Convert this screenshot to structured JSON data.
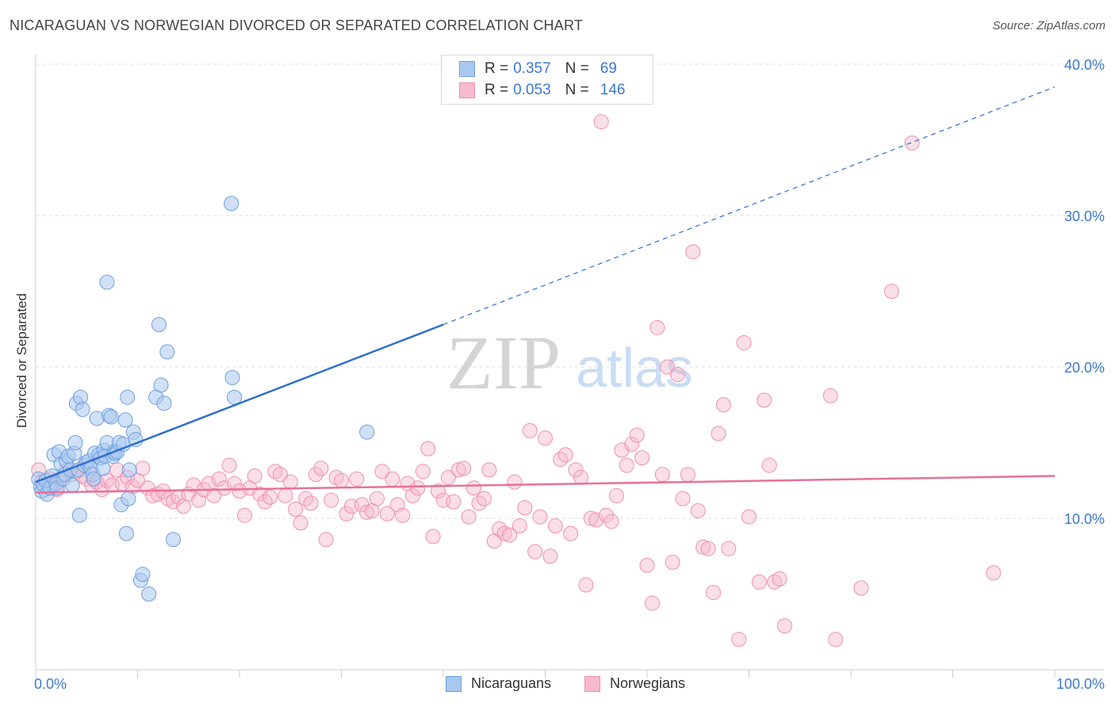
{
  "header": {
    "title": "NICARAGUAN VS NORWEGIAN DIVORCED OR SEPARATED CORRELATION CHART",
    "source": "Source: ZipAtlas.com"
  },
  "watermark": {
    "zip": "ZIP",
    "atlas": "atlas"
  },
  "legend_top": {
    "rows": [
      {
        "r_label": "R =",
        "r_value": "0.357",
        "n_label": "N =",
        "n_value": "69"
      },
      {
        "r_label": "R =",
        "r_value": "0.053",
        "n_label": "N =",
        "n_value": "146"
      }
    ]
  },
  "legend_bottom": {
    "items": [
      "Nicaraguans",
      "Norwegians"
    ]
  },
  "colors": {
    "blue_fill": "#a9c8f0",
    "blue_stroke": "#6f9fdc",
    "blue_line": "#2f6fcf",
    "pink_fill": "#f7b9cc",
    "pink_stroke": "#ee8faf",
    "pink_line": "#e8709a",
    "tick_label": "#3b78d0",
    "grid": "#dddddd"
  },
  "chart_data": {
    "type": "scatter",
    "title": "NICARAGUAN VS NORWEGIAN DIVORCED OR SEPARATED CORRELATION CHART",
    "xlabel": "",
    "ylabel": "Divorced or Separated",
    "xlim": [
      0,
      100
    ],
    "ylim": [
      0,
      40
    ],
    "x_tick_labels": [
      "0.0%",
      "100.0%"
    ],
    "y_ticks": [
      10,
      20,
      30,
      40
    ],
    "y_tick_labels": [
      "10.0%",
      "20.0%",
      "30.0%",
      "40.0%"
    ],
    "grid": true,
    "legend": "top-center",
    "series": [
      {
        "name": "Nicaraguans",
        "r": 0.357,
        "n": 69,
        "trend": {
          "x0": 0,
          "y0": 12.4,
          "x1": 40,
          "y1": 22.8,
          "dashed_to_x": 100,
          "dashed_to_y": 38.5
        },
        "points": [
          [
            0.3,
            12.6
          ],
          [
            0.5,
            12.1
          ],
          [
            0.6,
            11.8
          ],
          [
            0.8,
            12.2
          ],
          [
            1.0,
            12.5
          ],
          [
            1.1,
            11.6
          ],
          [
            1.4,
            12.0
          ],
          [
            1.6,
            12.8
          ],
          [
            1.8,
            14.2
          ],
          [
            2.0,
            12.3
          ],
          [
            2.1,
            12.0
          ],
          [
            2.3,
            14.4
          ],
          [
            2.5,
            13.6
          ],
          [
            2.7,
            12.6
          ],
          [
            2.9,
            12.9
          ],
          [
            3.0,
            13.8
          ],
          [
            3.2,
            14.1
          ],
          [
            3.4,
            13.2
          ],
          [
            3.6,
            12.2
          ],
          [
            3.8,
            14.3
          ],
          [
            3.9,
            15.0
          ],
          [
            4.0,
            17.6
          ],
          [
            4.2,
            13.2
          ],
          [
            4.3,
            10.2
          ],
          [
            4.4,
            18.0
          ],
          [
            4.6,
            17.2
          ],
          [
            4.8,
            13.5
          ],
          [
            5.0,
            13.7
          ],
          [
            5.2,
            13.8
          ],
          [
            5.4,
            13.3
          ],
          [
            5.6,
            12.9
          ],
          [
            5.7,
            12.6
          ],
          [
            5.8,
            14.3
          ],
          [
            6.0,
            16.6
          ],
          [
            6.2,
            14.2
          ],
          [
            6.4,
            14.0
          ],
          [
            6.6,
            13.3
          ],
          [
            6.7,
            14.5
          ],
          [
            6.8,
            14.1
          ],
          [
            7.0,
            15.0
          ],
          [
            7.2,
            16.8
          ],
          [
            7.4,
            16.7
          ],
          [
            7.0,
            25.6
          ],
          [
            7.6,
            14.1
          ],
          [
            7.7,
            14.4
          ],
          [
            7.8,
            14.3
          ],
          [
            8.0,
            14.4
          ],
          [
            8.2,
            15.0
          ],
          [
            8.4,
            10.9
          ],
          [
            8.6,
            14.9
          ],
          [
            8.8,
            16.5
          ],
          [
            8.9,
            9.0
          ],
          [
            9.0,
            18.0
          ],
          [
            9.1,
            11.3
          ],
          [
            9.2,
            13.2
          ],
          [
            9.6,
            15.7
          ],
          [
            9.8,
            15.2
          ],
          [
            10.3,
            5.9
          ],
          [
            10.5,
            6.3
          ],
          [
            11.1,
            5.0
          ],
          [
            11.8,
            18.0
          ],
          [
            12.1,
            22.8
          ],
          [
            12.3,
            18.8
          ],
          [
            12.6,
            17.6
          ],
          [
            12.9,
            21.0
          ],
          [
            13.5,
            8.6
          ],
          [
            19.3,
            19.3
          ],
          [
            19.5,
            18.0
          ],
          [
            32.5,
            15.7
          ],
          [
            19.2,
            30.8
          ]
        ]
      },
      {
        "name": "Norwegians",
        "r": 0.053,
        "n": 146,
        "trend": {
          "x0": 0,
          "y0": 11.7,
          "x1": 100,
          "y1": 12.8
        },
        "points": [
          [
            0.3,
            13.2
          ],
          [
            0.6,
            12.4
          ],
          [
            0.9,
            11.9
          ],
          [
            1.2,
            12.0
          ],
          [
            1.5,
            12.6
          ],
          [
            1.8,
            12.2
          ],
          [
            2.1,
            11.9
          ],
          [
            2.4,
            12.5
          ],
          [
            3.0,
            13.2
          ],
          [
            3.5,
            12.9
          ],
          [
            4.0,
            13.1
          ],
          [
            4.5,
            12.8
          ],
          [
            5.0,
            12.6
          ],
          [
            5.5,
            12.2
          ],
          [
            6.0,
            12.4
          ],
          [
            6.5,
            11.9
          ],
          [
            7.0,
            12.5
          ],
          [
            7.5,
            12.2
          ],
          [
            8.0,
            13.2
          ],
          [
            8.5,
            12.3
          ],
          [
            9.0,
            12.7
          ],
          [
            9.5,
            12.1
          ],
          [
            10.0,
            12.5
          ],
          [
            10.5,
            13.3
          ],
          [
            11.0,
            12.0
          ],
          [
            11.5,
            11.5
          ],
          [
            12.0,
            11.6
          ],
          [
            12.5,
            11.8
          ],
          [
            13.0,
            11.3
          ],
          [
            13.5,
            11.1
          ],
          [
            14.0,
            11.4
          ],
          [
            14.5,
            10.8
          ],
          [
            15.0,
            11.6
          ],
          [
            15.5,
            12.2
          ],
          [
            16.0,
            11.2
          ],
          [
            16.5,
            11.9
          ],
          [
            17.0,
            12.3
          ],
          [
            17.5,
            11.5
          ],
          [
            18.0,
            12.6
          ],
          [
            18.5,
            12.0
          ],
          [
            19.0,
            13.5
          ],
          [
            19.5,
            12.3
          ],
          [
            20.0,
            11.8
          ],
          [
            20.5,
            10.2
          ],
          [
            21.0,
            12.0
          ],
          [
            21.5,
            12.8
          ],
          [
            22.0,
            11.6
          ],
          [
            22.5,
            11.1
          ],
          [
            23.0,
            11.4
          ],
          [
            23.5,
            13.1
          ],
          [
            24.0,
            12.9
          ],
          [
            24.5,
            11.5
          ],
          [
            25.0,
            12.4
          ],
          [
            25.5,
            10.6
          ],
          [
            26.0,
            9.7
          ],
          [
            26.5,
            11.3
          ],
          [
            27.0,
            11.0
          ],
          [
            27.5,
            12.9
          ],
          [
            28.0,
            13.3
          ],
          [
            28.5,
            8.6
          ],
          [
            29.0,
            11.2
          ],
          [
            29.5,
            12.7
          ],
          [
            30.0,
            12.5
          ],
          [
            30.5,
            10.3
          ],
          [
            31.0,
            10.8
          ],
          [
            31.5,
            12.6
          ],
          [
            32.0,
            10.9
          ],
          [
            32.5,
            10.4
          ],
          [
            33.0,
            10.5
          ],
          [
            33.5,
            11.3
          ],
          [
            34.0,
            13.1
          ],
          [
            34.5,
            10.3
          ],
          [
            35.0,
            12.6
          ],
          [
            35.5,
            10.9
          ],
          [
            36.0,
            10.2
          ],
          [
            36.5,
            12.3
          ],
          [
            37.0,
            11.5
          ],
          [
            37.5,
            12.0
          ],
          [
            38.0,
            13.1
          ],
          [
            38.5,
            14.6
          ],
          [
            39.0,
            8.8
          ],
          [
            39.5,
            11.8
          ],
          [
            40.0,
            11.2
          ],
          [
            40.5,
            12.7
          ],
          [
            41.0,
            11.1
          ],
          [
            41.5,
            13.2
          ],
          [
            42.0,
            13.3
          ],
          [
            42.5,
            10.1
          ],
          [
            43.0,
            12.0
          ],
          [
            43.5,
            11.0
          ],
          [
            44.0,
            11.3
          ],
          [
            44.5,
            13.2
          ],
          [
            45.0,
            8.5
          ],
          [
            45.5,
            9.3
          ],
          [
            46.0,
            9.0
          ],
          [
            46.5,
            8.9
          ],
          [
            47.0,
            12.4
          ],
          [
            47.5,
            9.5
          ],
          [
            48.0,
            10.7
          ],
          [
            48.5,
            15.8
          ],
          [
            49.0,
            7.8
          ],
          [
            49.5,
            10.1
          ],
          [
            50.0,
            15.3
          ],
          [
            50.5,
            7.5
          ],
          [
            51.0,
            9.5
          ],
          [
            51.5,
            13.9
          ],
          [
            52.0,
            14.2
          ],
          [
            52.5,
            9.0
          ],
          [
            53.0,
            13.2
          ],
          [
            53.5,
            12.7
          ],
          [
            54.0,
            5.6
          ],
          [
            54.5,
            10.0
          ],
          [
            55.0,
            9.9
          ],
          [
            55.5,
            36.2
          ],
          [
            56.0,
            10.2
          ],
          [
            56.5,
            9.8
          ],
          [
            57.0,
            11.5
          ],
          [
            57.5,
            14.5
          ],
          [
            58.0,
            13.5
          ],
          [
            58.5,
            14.9
          ],
          [
            59.0,
            15.5
          ],
          [
            59.5,
            14.0
          ],
          [
            60.0,
            6.9
          ],
          [
            60.5,
            4.4
          ],
          [
            61.0,
            22.6
          ],
          [
            61.5,
            12.9
          ],
          [
            62.0,
            20.0
          ],
          [
            62.5,
            7.1
          ],
          [
            63.0,
            19.5
          ],
          [
            63.5,
            11.3
          ],
          [
            64.0,
            12.9
          ],
          [
            64.5,
            27.6
          ],
          [
            65.0,
            10.5
          ],
          [
            65.5,
            8.1
          ],
          [
            66.0,
            8.0
          ],
          [
            66.5,
            5.1
          ],
          [
            67.0,
            15.6
          ],
          [
            67.5,
            17.5
          ],
          [
            68.0,
            8.0
          ],
          [
            69.0,
            2.0
          ],
          [
            69.5,
            21.6
          ],
          [
            70.0,
            10.1
          ],
          [
            71.0,
            5.8
          ],
          [
            71.5,
            17.8
          ],
          [
            72.0,
            13.5
          ],
          [
            72.5,
            5.8
          ],
          [
            73.0,
            6.0
          ],
          [
            73.5,
            2.9
          ],
          [
            78.0,
            18.1
          ],
          [
            78.5,
            2.0
          ],
          [
            81.0,
            5.4
          ],
          [
            84.0,
            25.0
          ],
          [
            86.0,
            34.8
          ],
          [
            94.0,
            6.4
          ]
        ]
      }
    ]
  }
}
